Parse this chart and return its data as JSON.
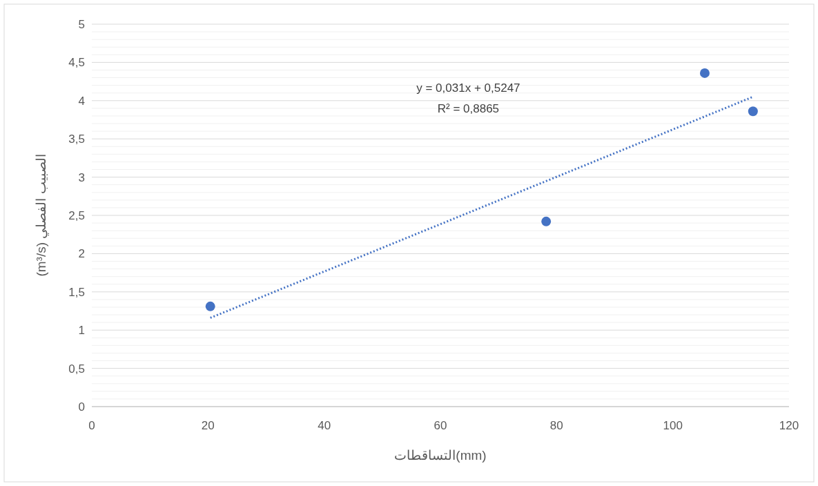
{
  "chart_data": {
    "type": "scatter",
    "xlabel": "التساقطات(mm)",
    "ylabel": "(m³/s) الصبيب الفصلي",
    "xlim": [
      0,
      120
    ],
    "xticks": [
      0,
      20,
      40,
      60,
      80,
      100,
      120
    ],
    "ylim": [
      0,
      5
    ],
    "yticks": [
      0,
      {
        "value": 0.1,
        "label": null
      },
      {
        "value": 0.2,
        "label": null
      },
      {
        "value": 0.3,
        "label": null
      },
      {
        "value": 0.4,
        "label": null
      },
      {
        "value": 0.5,
        "label": "0,5"
      },
      {
        "value": 0.6,
        "label": null
      },
      {
        "value": 0.7,
        "label": null
      },
      {
        "value": 0.8,
        "label": null
      },
      {
        "value": 0.9,
        "label": null
      },
      1,
      {
        "value": 1.1,
        "label": null
      },
      {
        "value": 1.2,
        "label": null
      },
      {
        "value": 1.3,
        "label": null
      },
      {
        "value": 1.4,
        "label": null
      },
      {
        "value": 1.5,
        "label": "1,5"
      },
      {
        "value": 1.6,
        "label": null
      },
      {
        "value": 1.7,
        "label": null
      },
      {
        "value": 1.8,
        "label": null
      },
      {
        "value": 1.9,
        "label": null
      },
      2,
      {
        "value": 2.1,
        "label": null
      },
      {
        "value": 2.2,
        "label": null
      },
      {
        "value": 2.3,
        "label": null
      },
      {
        "value": 2.4,
        "label": null
      },
      {
        "value": 2.5,
        "label": "2,5"
      },
      {
        "value": 2.6,
        "label": null
      },
      {
        "value": 2.7,
        "label": null
      },
      {
        "value": 2.8,
        "label": null
      },
      {
        "value": 2.9,
        "label": null
      },
      3,
      {
        "value": 3.1,
        "label": null
      },
      {
        "value": 3.2,
        "label": null
      },
      {
        "value": 3.3,
        "label": null
      },
      {
        "value": 3.4,
        "label": null
      },
      {
        "value": 3.5,
        "label": "3,5"
      },
      {
        "value": 3.6,
        "label": null
      },
      {
        "value": 3.7,
        "label": null
      },
      {
        "value": 3.8,
        "label": null
      },
      {
        "value": 3.9,
        "label": null
      },
      4,
      {
        "value": 4.1,
        "label": null
      },
      {
        "value": 4.2,
        "label": null
      },
      {
        "value": 4.3,
        "label": null
      },
      {
        "value": 4.4,
        "label": null
      },
      {
        "value": 4.5,
        "label": "4,5"
      },
      {
        "value": 4.6,
        "label": null
      },
      {
        "value": 4.7,
        "label": null
      },
      {
        "value": 4.8,
        "label": null
      },
      {
        "value": 4.9,
        "label": null
      },
      5
    ],
    "grid": "y",
    "series": [
      {
        "marker": "circle",
        "color": "#4472c4",
        "x": [
          20.4,
          78.2,
          105.5,
          113.8
        ],
        "values": [
          1.31,
          2.42,
          4.36,
          3.86
        ]
      },
      {
        "type": "line",
        "color": "#4472c4",
        "line_style": "dotted",
        "x": [
          20.4,
          113.8
        ],
        "values": [
          1.16,
          4.05
        ]
      }
    ],
    "annotations": [
      "y = 0,031x + 0,5247",
      "R² = 0,8865"
    ]
  }
}
